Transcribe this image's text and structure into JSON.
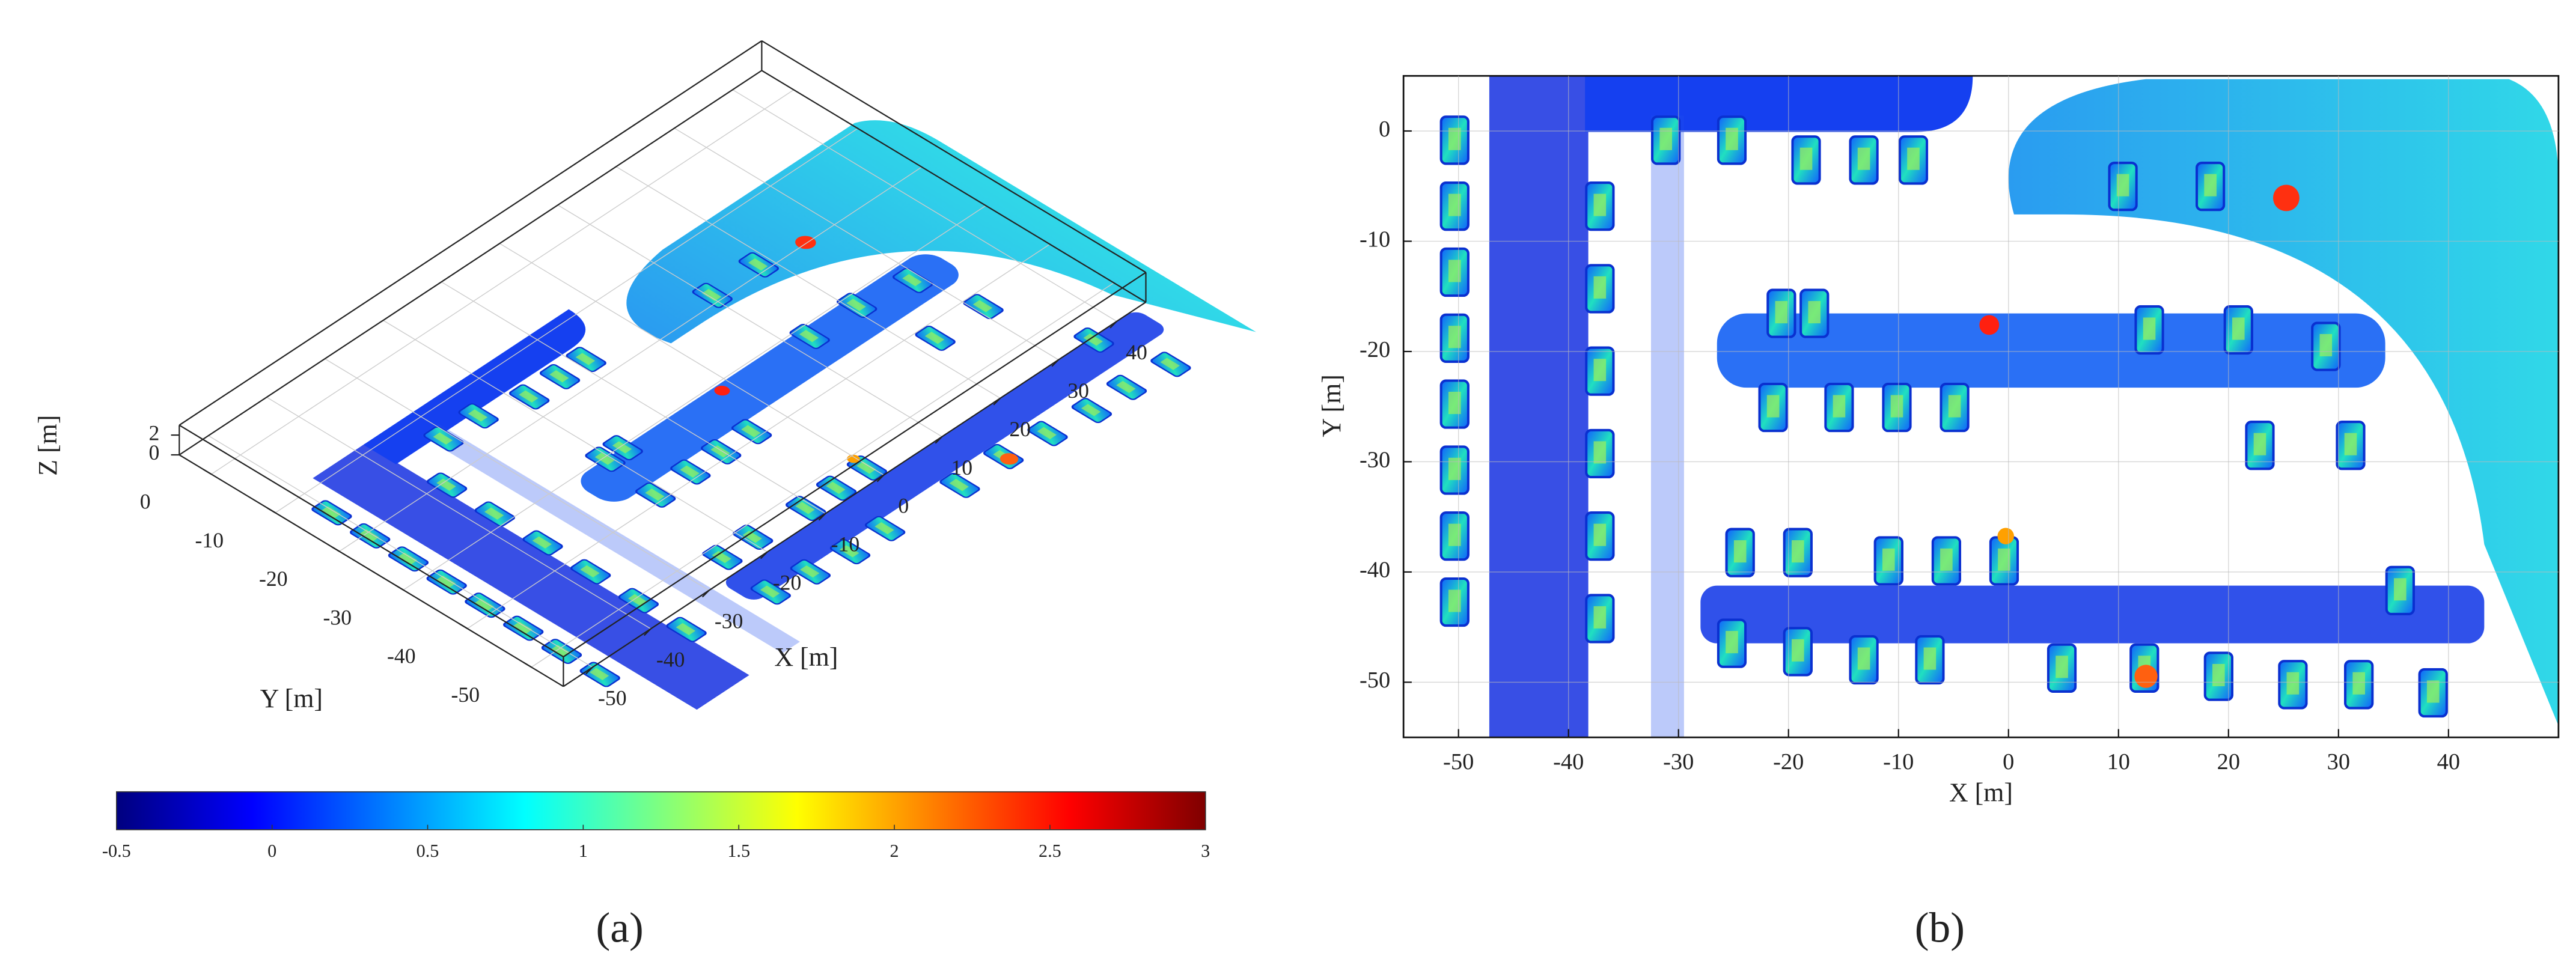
{
  "chart_data": [
    {
      "type": "scatter3d",
      "caption": "(a)",
      "x_label": "X [m]",
      "y_label": "Y [m]",
      "z_label": "Z [m]",
      "xlim": [
        -55,
        45
      ],
      "ylim": [
        -55,
        5
      ],
      "zlim": [
        0,
        3
      ],
      "xticks": [
        -50,
        -40,
        -30,
        -20,
        -10,
        0,
        10,
        20,
        30,
        40
      ],
      "yticks": [
        -50,
        -40,
        -30,
        -20,
        -10,
        0
      ],
      "zticks": [
        0,
        2
      ],
      "grid": true,
      "colorbar": {
        "lim": [
          -0.5,
          3
        ],
        "ticks": [
          -0.5,
          0,
          0.5,
          1,
          1.5,
          2,
          2.5,
          3
        ],
        "colors": [
          "#00007f",
          "#0000ff",
          "#007fff",
          "#00ffff",
          "#7fff7f",
          "#ffff00",
          "#ff7f00",
          "#ff0000",
          "#7f0000"
        ]
      }
    },
    {
      "type": "scatter",
      "caption": "(b)",
      "x_label": "X [m]",
      "y_label": "Y [m]",
      "xlim": [
        -55,
        50
      ],
      "ylim": [
        -55,
        5
      ],
      "xticks": [
        -50,
        -40,
        -30,
        -20,
        -10,
        0,
        10,
        20,
        30,
        40
      ],
      "yticks": [
        -50,
        -40,
        -30,
        -20,
        -10,
        0
      ],
      "grid": true
    }
  ]
}
